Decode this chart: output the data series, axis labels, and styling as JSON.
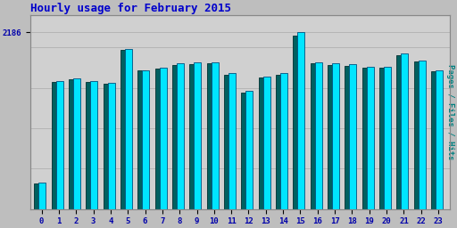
{
  "title": "Hourly usage for February 2015",
  "hours": [
    0,
    1,
    2,
    3,
    4,
    5,
    6,
    7,
    8,
    9,
    10,
    11,
    12,
    13,
    14,
    15,
    16,
    17,
    18,
    19,
    20,
    21,
    22,
    23
  ],
  "pages": [
    320,
    1580,
    1620,
    1580,
    1560,
    1980,
    1720,
    1750,
    1800,
    1810,
    1820,
    1680,
    1460,
    1640,
    1680,
    2186,
    1820,
    1800,
    1790,
    1760,
    1760,
    1920,
    1840,
    1720
  ],
  "files": [
    310,
    1570,
    1610,
    1570,
    1545,
    1965,
    1710,
    1740,
    1785,
    1795,
    1805,
    1665,
    1445,
    1625,
    1665,
    2150,
    1805,
    1785,
    1775,
    1745,
    1745,
    1905,
    1825,
    1705
  ],
  "bar_color_pages": "#00e5ff",
  "bar_color_files": "#006060",
  "bar_edge_color_pages": "#005080",
  "bar_edge_color_files": "#003030",
  "title_color": "#0000cc",
  "ylabel_color": "#008080",
  "ylabel": "Pages / Files / Hits",
  "bg_color": "#bebebe",
  "plot_bg_color": "#d0d0d0",
  "tick_color": "#0000aa",
  "ylim_max": 2400,
  "ytick_val": 2186,
  "grid_color": "#aaaaaa",
  "figsize": [
    5.12,
    2.56
  ],
  "dpi": 100
}
